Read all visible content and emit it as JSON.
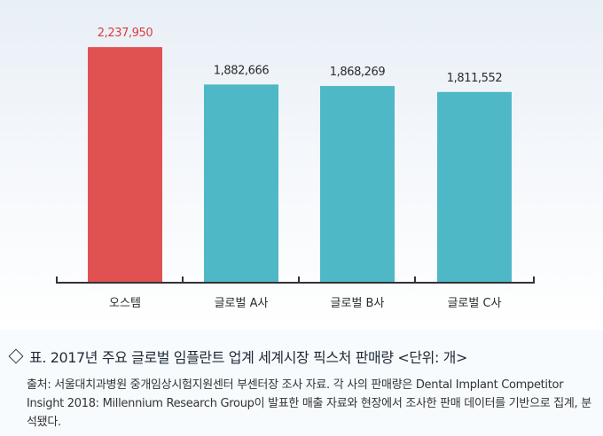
{
  "chart_data": {
    "type": "bar",
    "categories": [
      "오스템",
      "글로벌 A사",
      "글로벌 B사",
      "글로벌 C사"
    ],
    "values": [
      2237950,
      1882666,
      1868269,
      1811552
    ],
    "value_labels": [
      "2,237,950",
      "1,882,666",
      "1,868,269",
      "1,811,552"
    ],
    "colors": [
      "#e05251",
      "#4fb8c6",
      "#4fb8c6",
      "#4fb8c6"
    ],
    "value_label_colors": [
      "#d8403f",
      "#2b2b2b",
      "#2b2b2b",
      "#2b2b2b"
    ],
    "ylim": [
      0,
      2500000
    ],
    "grid": false,
    "legend": "none"
  },
  "caption": {
    "title": "표. 2017년 주요 글로벌 임플란트 업계 세계시장 픽스처 판매량 <단위: 개>",
    "title_icon": "diamond-outline-icon",
    "source": "출처: 서울대치과병원 중개임상시험지원센터 부센터장 조사 자료. 각 사의 판매량은 Dental Implant Competitor Insight 2018: Millennium Research Group이 발표한 매출 자료와 현장에서 조사한 판매 데이터를 기반으로 집계, 분석됐다."
  }
}
